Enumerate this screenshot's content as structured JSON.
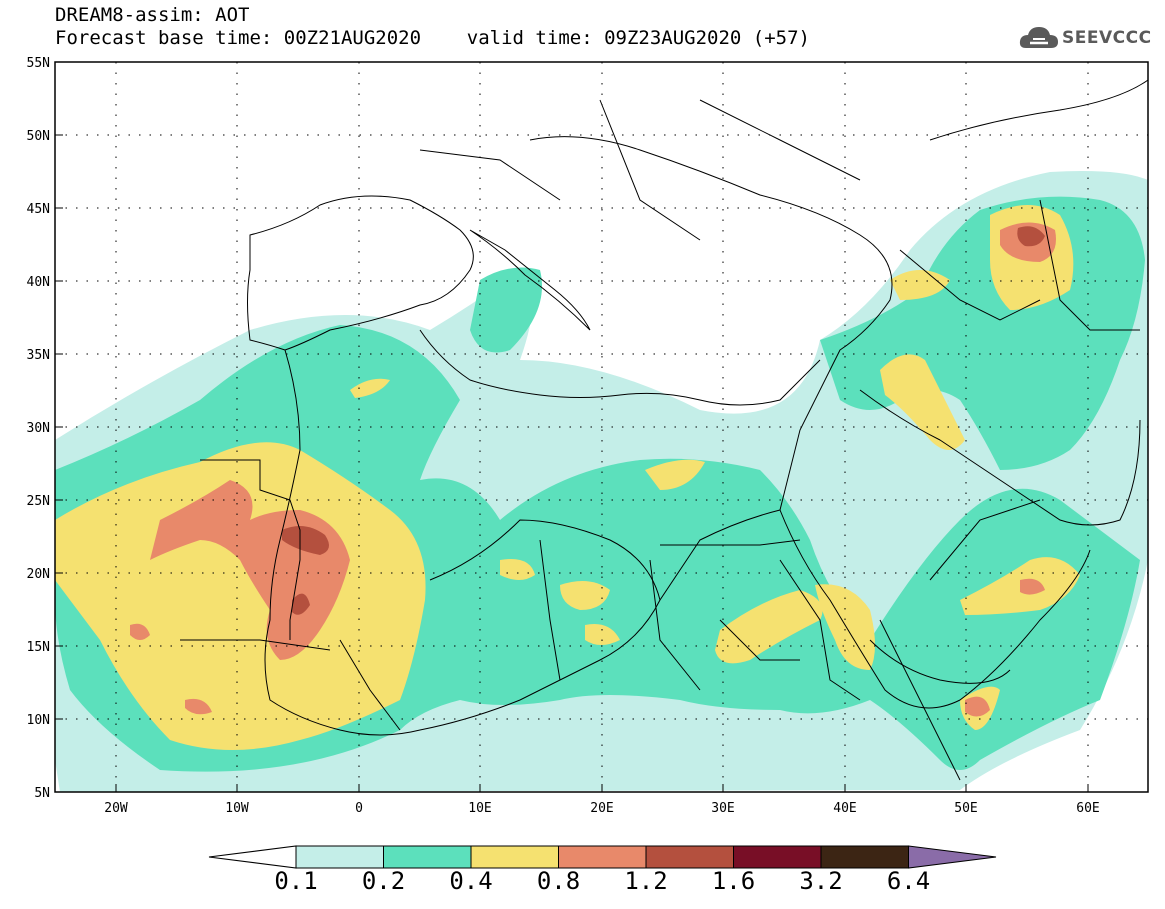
{
  "title": {
    "line1": "DREAM8-assim: AOT",
    "line2": "Forecast base time: 00Z21AUG2020    valid time: 09Z23AUG2020 (+57)"
  },
  "logo": {
    "text": "SEEVCCC",
    "icon": "cloud-icon"
  },
  "map": {
    "latitude_labels": [
      "55N",
      "50N",
      "45N",
      "40N",
      "35N",
      "30N",
      "25N",
      "20N",
      "15N",
      "10N",
      "5N"
    ],
    "longitude_labels": [
      "20W",
      "10W",
      "0",
      "10E",
      "20E",
      "30E",
      "40E",
      "50E",
      "60E"
    ]
  },
  "colorbar": {
    "labels": [
      "0.1",
      "0.2",
      "0.4",
      "0.8",
      "1.2",
      "1.6",
      "3.2",
      "6.4"
    ],
    "colors": [
      "#ffffff",
      "#c4eee8",
      "#5ce0bc",
      "#f5e170",
      "#e8896a",
      "#b4503e",
      "#780e26",
      "#3c2514",
      "#8a6ca8"
    ]
  }
}
